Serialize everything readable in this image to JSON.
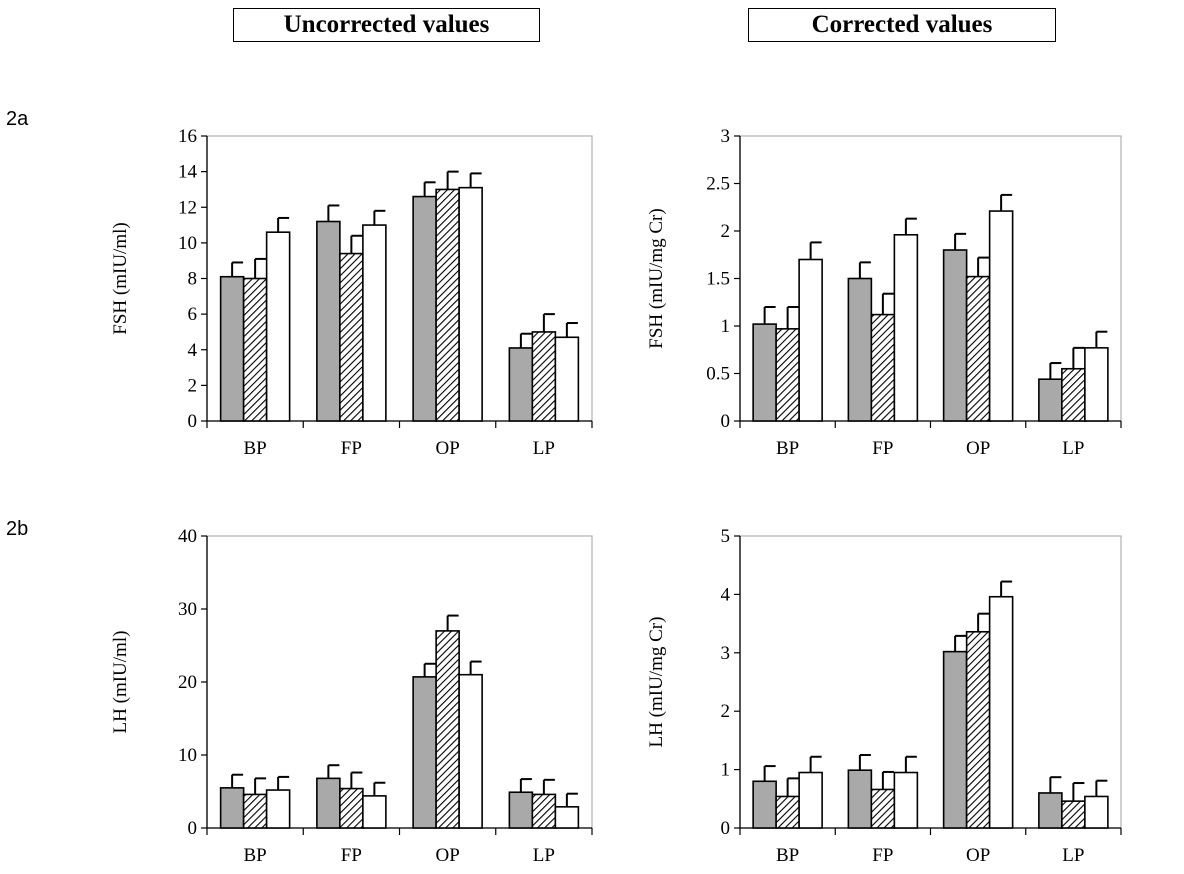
{
  "headers": {
    "left": "Uncorrected values",
    "right": "Corrected values"
  },
  "row_labels": {
    "a": "2a",
    "b": "2b"
  },
  "colors": {
    "series1": "#a9a9a9",
    "series2_hatch": "#000000",
    "series3": "#ffffff",
    "plot_border": "#b0b0b0"
  },
  "chart_data": [
    {
      "type": "bar",
      "title": "",
      "ylabel": "FSH (mIU/ml)",
      "xlabel": "",
      "categories": [
        "BP",
        "FP",
        "OP",
        "LP"
      ],
      "ylim": [
        0,
        16
      ],
      "yticks": [
        "0",
        "2",
        "4",
        "6",
        "8",
        "10",
        "12",
        "14",
        "16"
      ],
      "ytick_values": [
        0,
        2,
        4,
        6,
        8,
        10,
        12,
        14,
        16
      ],
      "series": [
        {
          "style": "gray",
          "values": [
            8.1,
            11.2,
            12.6,
            4.1
          ],
          "errors": [
            0.8,
            0.9,
            0.8,
            0.8
          ]
        },
        {
          "style": "hatched",
          "values": [
            8.0,
            9.4,
            13.0,
            5.0
          ],
          "errors": [
            1.1,
            1.0,
            1.0,
            1.0
          ]
        },
        {
          "style": "white",
          "values": [
            10.6,
            11.0,
            13.1,
            4.7
          ],
          "errors": [
            0.8,
            0.8,
            0.8,
            0.8
          ]
        }
      ]
    },
    {
      "type": "bar",
      "title": "",
      "ylabel": "FSH (mIU/mg Cr)",
      "xlabel": "",
      "categories": [
        "BP",
        "FP",
        "OP",
        "LP"
      ],
      "ylim": [
        0,
        3
      ],
      "yticks": [
        "0",
        "0.5",
        "1",
        "1.5",
        "2",
        "2.5",
        "3"
      ],
      "ytick_values": [
        0,
        0.5,
        1,
        1.5,
        2,
        2.5,
        3
      ],
      "series": [
        {
          "style": "gray",
          "values": [
            1.02,
            1.5,
            1.8,
            0.44
          ],
          "errors": [
            0.18,
            0.17,
            0.17,
            0.17
          ]
        },
        {
          "style": "hatched",
          "values": [
            0.97,
            1.12,
            1.52,
            0.55
          ],
          "errors": [
            0.23,
            0.22,
            0.2,
            0.22
          ]
        },
        {
          "style": "white",
          "values": [
            1.7,
            1.96,
            2.21,
            0.77
          ],
          "errors": [
            0.18,
            0.17,
            0.17,
            0.17
          ]
        }
      ]
    },
    {
      "type": "bar",
      "title": "",
      "ylabel": "LH (mIU/ml)",
      "xlabel": "",
      "categories": [
        "BP",
        "FP",
        "OP",
        "LP"
      ],
      "ylim": [
        0,
        40
      ],
      "yticks": [
        "0",
        "10",
        "20",
        "30",
        "40"
      ],
      "ytick_values": [
        0,
        10,
        20,
        30,
        40
      ],
      "series": [
        {
          "style": "gray",
          "values": [
            5.5,
            6.8,
            20.7,
            4.9
          ],
          "errors": [
            1.8,
            1.8,
            1.8,
            1.8
          ]
        },
        {
          "style": "hatched",
          "values": [
            4.6,
            5.4,
            27.0,
            4.6
          ],
          "errors": [
            2.2,
            2.2,
            2.1,
            2.0
          ]
        },
        {
          "style": "white",
          "values": [
            5.2,
            4.4,
            21.0,
            2.9
          ],
          "errors": [
            1.8,
            1.8,
            1.8,
            1.8
          ]
        }
      ]
    },
    {
      "type": "bar",
      "title": "",
      "ylabel": "LH (mIU/mg Cr)",
      "xlabel": "",
      "categories": [
        "BP",
        "FP",
        "OP",
        "LP"
      ],
      "ylim": [
        0,
        5
      ],
      "yticks": [
        "0",
        "1",
        "2",
        "3",
        "4",
        "5"
      ],
      "ytick_values": [
        0,
        1,
        2,
        3,
        4,
        5
      ],
      "series": [
        {
          "style": "gray",
          "values": [
            0.8,
            0.99,
            3.02,
            0.6
          ],
          "errors": [
            0.26,
            0.26,
            0.27,
            0.27
          ]
        },
        {
          "style": "hatched",
          "values": [
            0.54,
            0.66,
            3.36,
            0.46
          ],
          "errors": [
            0.31,
            0.3,
            0.31,
            0.31
          ]
        },
        {
          "style": "white",
          "values": [
            0.95,
            0.95,
            3.96,
            0.54
          ],
          "errors": [
            0.27,
            0.27,
            0.26,
            0.27
          ]
        }
      ]
    }
  ]
}
